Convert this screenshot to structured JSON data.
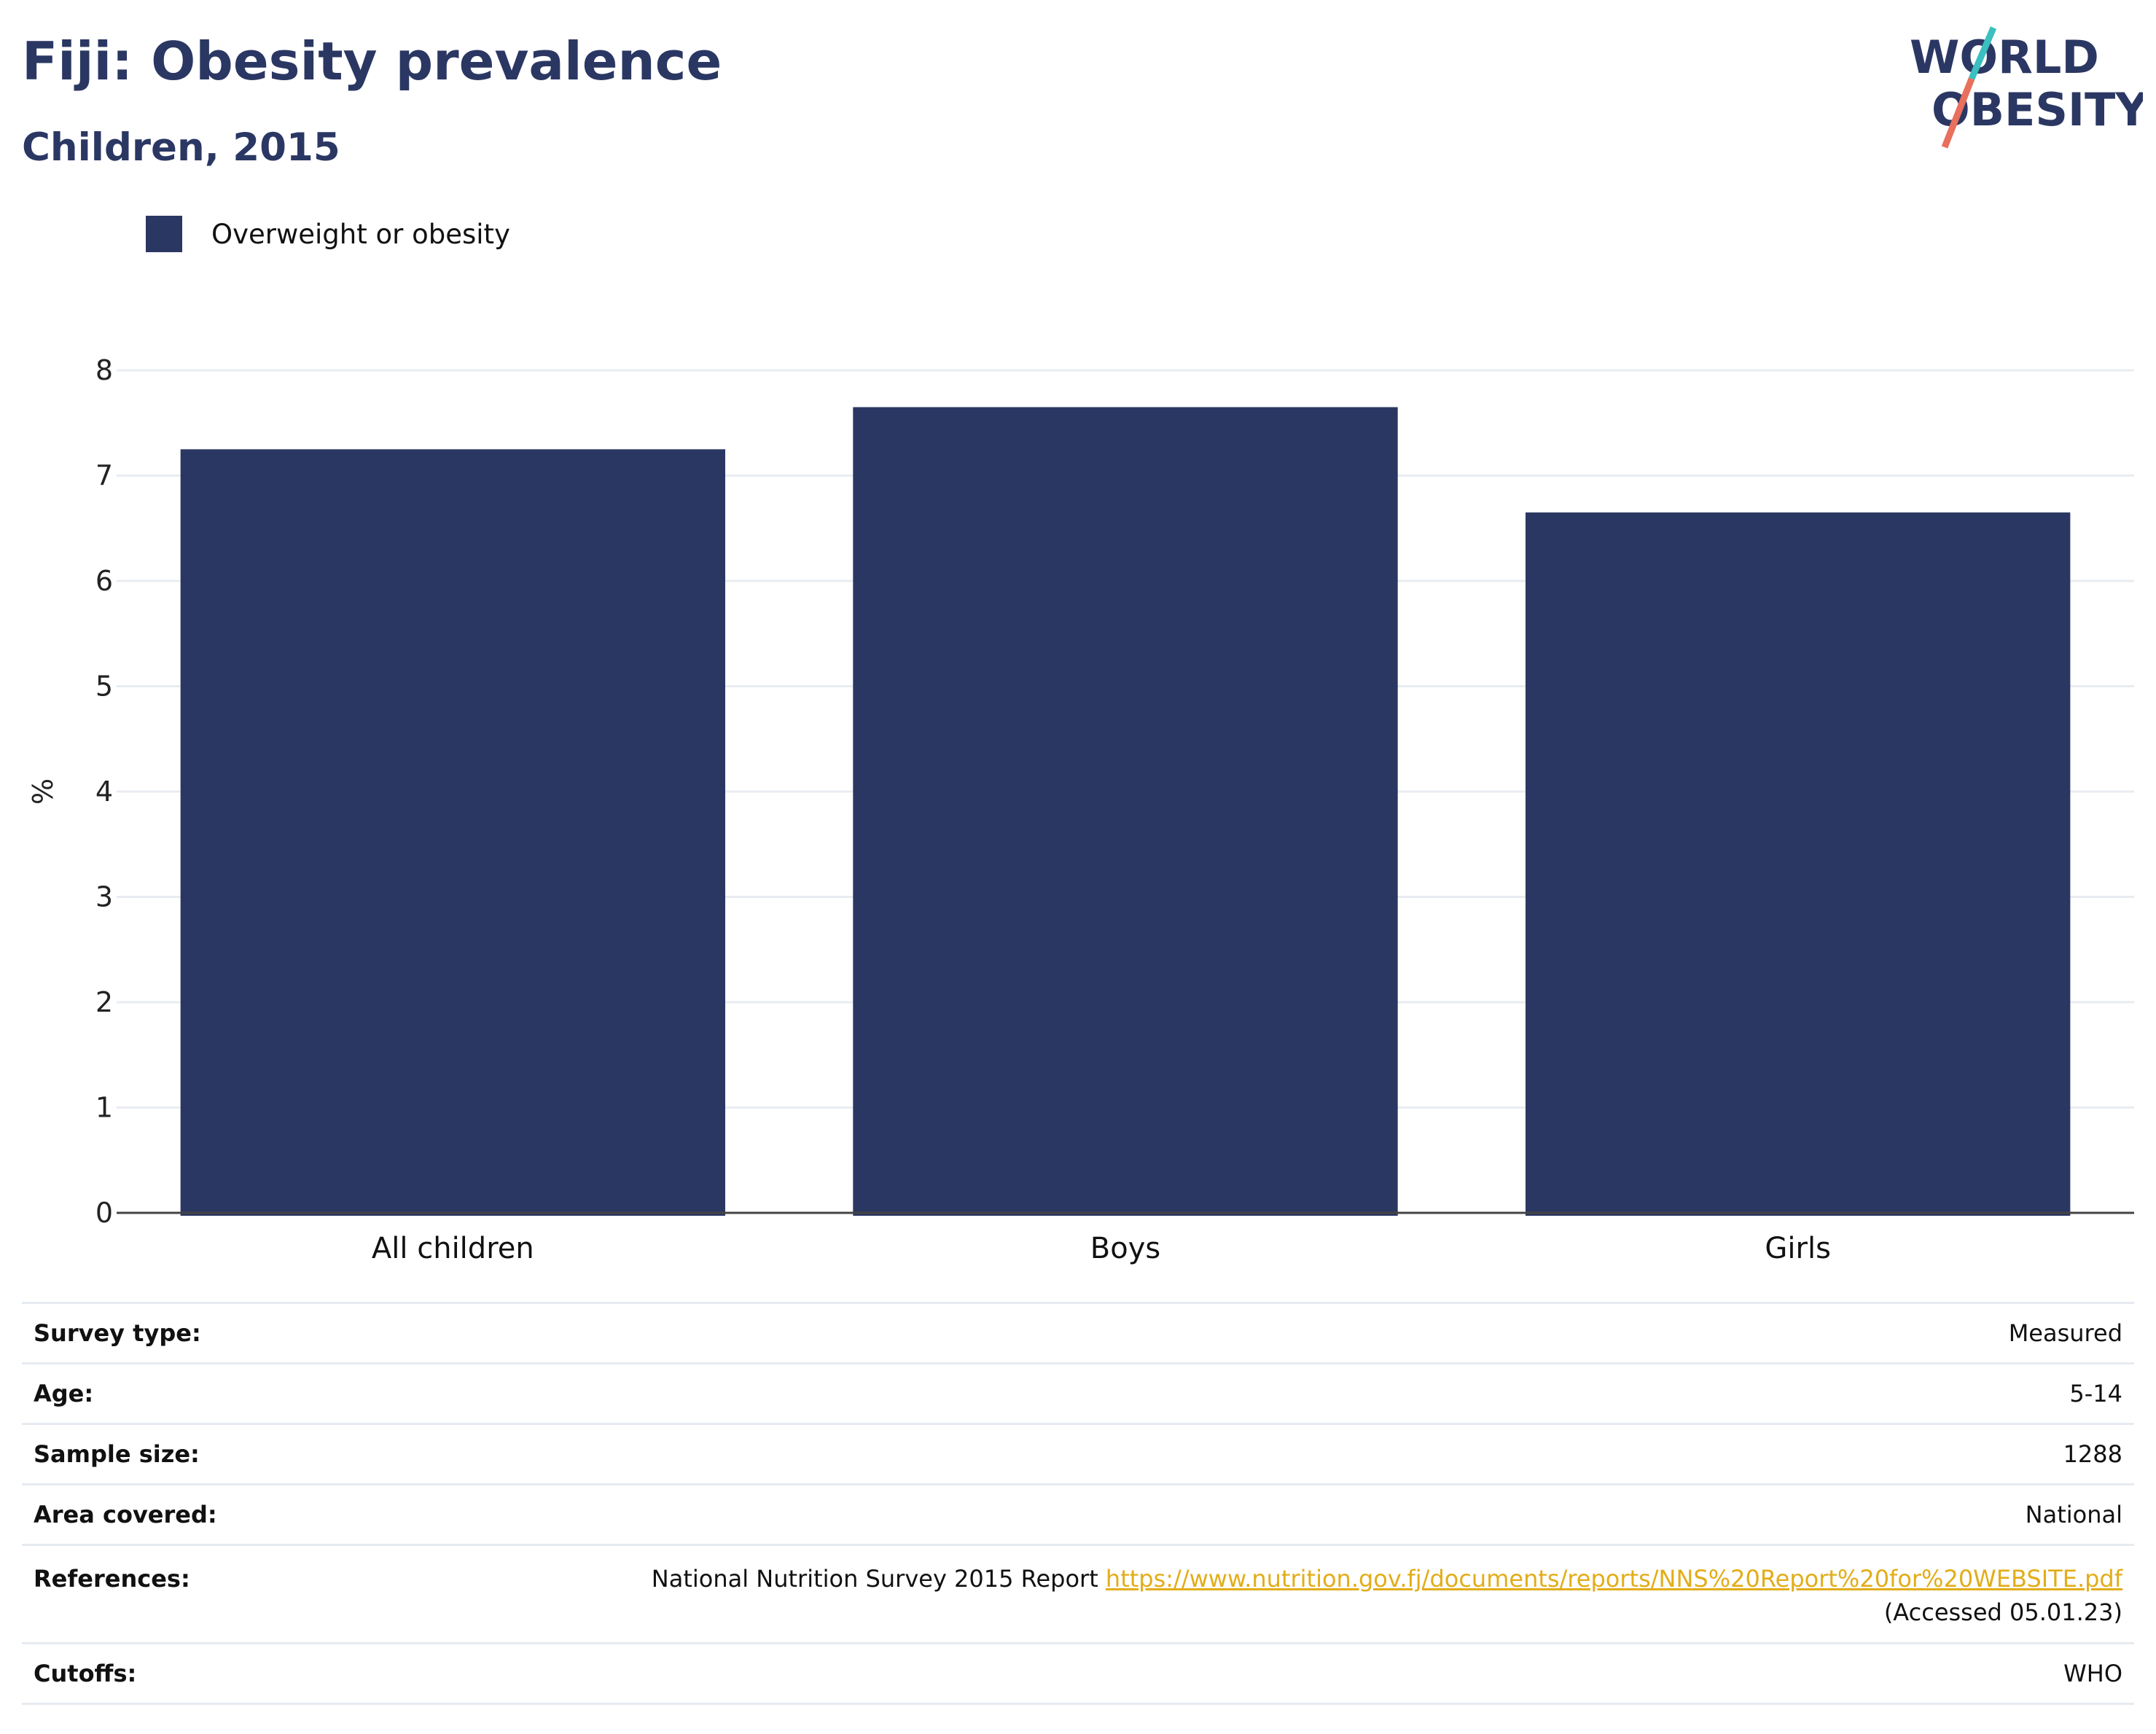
{
  "header": {
    "title": "Fiji: Obesity prevalence",
    "subtitle": "Children, 2015"
  },
  "logo": {
    "line1": "WORLD",
    "line2": "OBESITY"
  },
  "legend": {
    "label": "Overweight or obesity",
    "color": "#2b3763"
  },
  "chart_data": {
    "type": "bar",
    "categories": [
      "All children",
      "Boys",
      "Girls"
    ],
    "series": [
      {
        "name": "Overweight or obesity",
        "values": [
          7.25,
          7.65,
          6.65
        ]
      }
    ],
    "ylabel": "%",
    "ylim": [
      0,
      8
    ],
    "yticks": [
      0,
      1,
      2,
      3,
      4,
      5,
      6,
      7,
      8
    ],
    "grid": true,
    "legend_position": "top-left",
    "bar_color": "#2b3763"
  },
  "details": {
    "survey_type": {
      "label": "Survey type:",
      "value": "Measured"
    },
    "age": {
      "label": "Age:",
      "value": "5-14"
    },
    "sample_size": {
      "label": "Sample size:",
      "value": "1288"
    },
    "area_covered": {
      "label": "Area covered:",
      "value": "National"
    },
    "references": {
      "label": "References:",
      "text": "National Nutrition Survey 2015 Report ",
      "link": "https://www.nutrition.gov.fj/documents/reports/NNS%20Report%20for%20WEBSITE.pdf",
      "accessed": "(Accessed 05.01.23)"
    },
    "cutoffs": {
      "label": "Cutoffs:",
      "value": "WHO"
    }
  },
  "colors": {
    "primary": "#2b3763",
    "teal": "#3bbfbf",
    "coral": "#e8705d",
    "link": "#e2ad19",
    "grid": "#e8ecf2"
  }
}
